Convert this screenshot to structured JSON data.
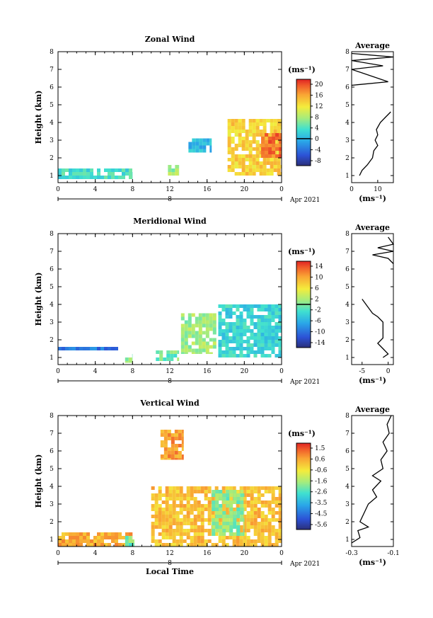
{
  "chart_data": [
    {
      "type": "heatmap",
      "title": "Zonal Wind",
      "ylabel": "Height (km)",
      "xlabel": "",
      "xticks": [
        "0",
        "4",
        "8",
        "12",
        "16",
        "20",
        "0"
      ],
      "yticks": [
        "1",
        "2",
        "3",
        "4",
        "5",
        "6",
        "7",
        "8"
      ],
      "xlim": [
        0,
        24
      ],
      "ylim": [
        0.6,
        8
      ],
      "date_label": "8",
      "month_label": "Apr 2021",
      "colorbar": {
        "unit": "(ms⁻¹)",
        "ticks": [
          "20",
          "16",
          "12",
          "8",
          "4",
          "0",
          "-4",
          "-8"
        ],
        "range": [
          -10,
          22
        ],
        "zero_line": 0
      },
      "regions": [
        {
          "x": [
            18.2,
            24
          ],
          "y": [
            1.0,
            4.2
          ],
          "v": 13
        },
        {
          "x": [
            21.8,
            24
          ],
          "y": [
            2.0,
            3.4
          ],
          "v": 18
        },
        {
          "x": [
            14,
            16.5
          ],
          "y": [
            2.3,
            3.1
          ],
          "v": 0
        },
        {
          "x": [
            11.8,
            13
          ],
          "y": [
            1.0,
            1.6
          ],
          "v": 7
        },
        {
          "x": [
            0,
            8
          ],
          "y": [
            0.8,
            1.4
          ],
          "v": 3
        }
      ],
      "profile": {
        "title": "Average",
        "unit": "(ms⁻¹)",
        "xticks": [
          "0",
          "10"
        ],
        "xlim": [
          0,
          16
        ],
        "points": [
          [
            3,
            1
          ],
          [
            4,
            1.3
          ],
          [
            6,
            1.6
          ],
          [
            8,
            2.0
          ],
          [
            8.5,
            2.4
          ],
          [
            10,
            2.7
          ],
          [
            9,
            3.0
          ],
          [
            10,
            3.3
          ],
          [
            9.5,
            3.6
          ],
          [
            11,
            4.0
          ],
          [
            13,
            4.3
          ],
          [
            15,
            4.6
          ]
        ],
        "upper_points": [
          [
            0,
            6.1
          ],
          [
            14,
            6.3
          ],
          [
            0,
            7.0
          ],
          [
            12,
            7.2
          ],
          [
            0,
            7.5
          ],
          [
            16,
            7.7
          ],
          [
            0,
            7.9
          ]
        ]
      }
    },
    {
      "type": "heatmap",
      "title": "Meridional Wind",
      "ylabel": "Height (km)",
      "xlabel": "",
      "xticks": [
        "0",
        "4",
        "8",
        "12",
        "16",
        "20",
        "0"
      ],
      "yticks": [
        "1",
        "2",
        "3",
        "4",
        "5",
        "6",
        "7",
        "8"
      ],
      "xlim": [
        0,
        24
      ],
      "ylim": [
        0.6,
        8
      ],
      "date_label": "8",
      "month_label": "Apr 2021",
      "colorbar": {
        "unit": "(ms⁻¹)",
        "ticks": [
          "14",
          "10",
          "6",
          "2",
          "-2",
          "-6",
          "-10",
          "-14"
        ],
        "range": [
          -16,
          16
        ],
        "zero_line": 0
      },
      "regions": [
        {
          "x": [
            13.2,
            17
          ],
          "y": [
            1.2,
            3.5
          ],
          "v": 1
        },
        {
          "x": [
            17.2,
            24
          ],
          "y": [
            1.0,
            4.0
          ],
          "v": -4
        },
        {
          "x": [
            10.5,
            13
          ],
          "y": [
            0.8,
            1.4
          ],
          "v": -1
        },
        {
          "x": [
            7.2,
            8
          ],
          "y": [
            0.7,
            1.2
          ],
          "v": 0
        },
        {
          "x": [
            0,
            7
          ],
          "y": [
            1.4,
            1.6
          ],
          "v": -10
        }
      ],
      "profile": {
        "title": "Average",
        "unit": "(ms⁻¹)",
        "xticks": [
          "-5",
          "0"
        ],
        "xlim": [
          -7,
          1
        ],
        "points": [
          [
            -1,
            1
          ],
          [
            0,
            1.2
          ],
          [
            -1,
            1.5
          ],
          [
            -2,
            1.8
          ],
          [
            -1,
            2.1
          ],
          [
            -1,
            2.5
          ],
          [
            -1,
            3.0
          ],
          [
            -2,
            3.3
          ],
          [
            -3,
            3.5
          ],
          [
            -4,
            3.9
          ],
          [
            -5,
            4.3
          ]
        ],
        "upper_points": [
          [
            1,
            6.3
          ],
          [
            0,
            6.6
          ],
          [
            -3,
            6.8
          ],
          [
            1,
            7.0
          ],
          [
            -2,
            7.2
          ],
          [
            1,
            7.4
          ],
          [
            0,
            7.8
          ]
        ]
      }
    },
    {
      "type": "heatmap",
      "title": "Vertical Wind",
      "ylabel": "Height (km)",
      "xlabel": "Local Time",
      "xticks": [
        "0",
        "4",
        "8",
        "12",
        "16",
        "20",
        "0"
      ],
      "yticks": [
        "1",
        "2",
        "3",
        "4",
        "5",
        "6",
        "7",
        "8"
      ],
      "xlim": [
        0,
        24
      ],
      "ylim": [
        0.6,
        8
      ],
      "date_label": "8",
      "month_label": "Apr 2021",
      "colorbar": {
        "unit": "(ms⁻¹)",
        "ticks": [
          "1.5",
          "0.6",
          "-0.6",
          "-1.6",
          "-2.6",
          "-3.5",
          "-4.5",
          "-5.6"
        ],
        "range": [
          -6,
          2
        ],
        "zero_line": null
      },
      "regions": [
        {
          "x": [
            10,
            24
          ],
          "y": [
            0.6,
            4.0
          ],
          "v": 0.0
        },
        {
          "x": [
            16.5,
            20
          ],
          "y": [
            1.2,
            3.8
          ],
          "v": -2
        },
        {
          "x": [
            0,
            8
          ],
          "y": [
            0.6,
            1.4
          ],
          "v": 0.3
        },
        {
          "x": [
            11,
            13.5
          ],
          "y": [
            5.5,
            7.2
          ],
          "v": 0.5
        },
        {
          "x": [
            7.2,
            8.2
          ],
          "y": [
            0.6,
            1.2
          ],
          "v": -2.2
        }
      ],
      "profile": {
        "title": "Average",
        "unit": "(ms⁻¹)",
        "xticks": [
          "-0.3",
          "-0.1"
        ],
        "xlim": [
          -0.3,
          -0.1
        ],
        "points": [
          [
            -0.3,
            0.8
          ],
          [
            -0.26,
            1.1
          ],
          [
            -0.27,
            1.5
          ],
          [
            -0.22,
            1.7
          ],
          [
            -0.26,
            2.0
          ],
          [
            -0.24,
            2.5
          ],
          [
            -0.22,
            3.0
          ],
          [
            -0.18,
            3.4
          ],
          [
            -0.2,
            3.8
          ],
          [
            -0.16,
            4.3
          ],
          [
            -0.2,
            4.6
          ],
          [
            -0.15,
            5.0
          ],
          [
            -0.16,
            5.5
          ],
          [
            -0.13,
            6.0
          ],
          [
            -0.15,
            6.5
          ],
          [
            -0.12,
            7.0
          ],
          [
            -0.13,
            7.5
          ],
          [
            -0.11,
            8.0
          ]
        ]
      }
    }
  ]
}
